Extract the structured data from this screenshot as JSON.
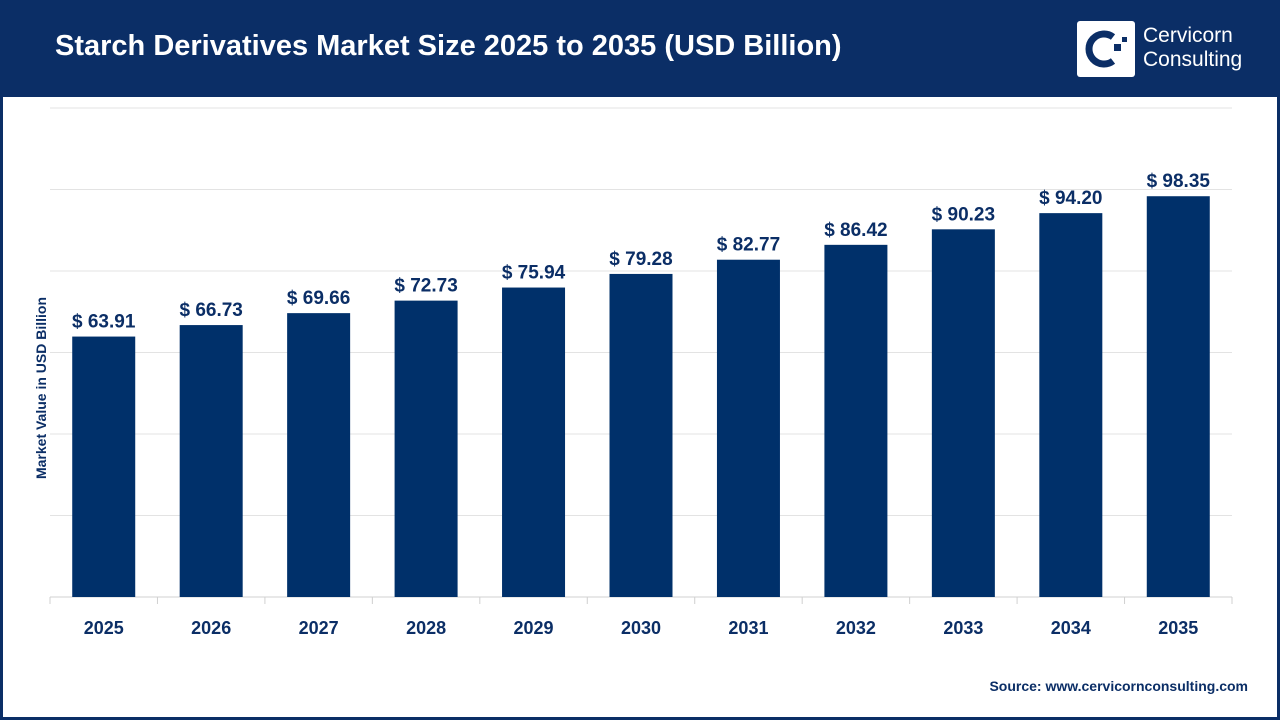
{
  "header": {
    "title": "Starch Derivatives Market Size 2025 to 2035 (USD Billion)",
    "logo_text_line1": "Cervicorn",
    "logo_text_line2": "Consulting"
  },
  "source": "Source: www.cervicornconsulting.com",
  "colors": {
    "bar": "#00306a",
    "header": "#0b2e66",
    "grid": "#e3e3e3"
  },
  "chart_data": {
    "type": "bar",
    "title": "Starch Derivatives Market Size 2025 to 2035 (USD Billion)",
    "xlabel": "",
    "ylabel": "Market Value in USD Billion",
    "categories": [
      "2025",
      "2026",
      "2027",
      "2028",
      "2029",
      "2030",
      "2031",
      "2032",
      "2033",
      "2034",
      "2035"
    ],
    "values": [
      63.91,
      66.73,
      69.66,
      72.73,
      75.94,
      79.28,
      82.77,
      86.42,
      90.23,
      94.2,
      98.35
    ],
    "data_labels": [
      "$ 63.91",
      "$ 66.73",
      "$ 69.66",
      "$ 72.73",
      "$ 75.94",
      "$ 79.28",
      "$ 82.77",
      "$ 86.42",
      "$ 90.23",
      "$ 94.20",
      "$ 98.35"
    ],
    "ylim": [
      0,
      120
    ],
    "grid": true,
    "legend": "none"
  }
}
